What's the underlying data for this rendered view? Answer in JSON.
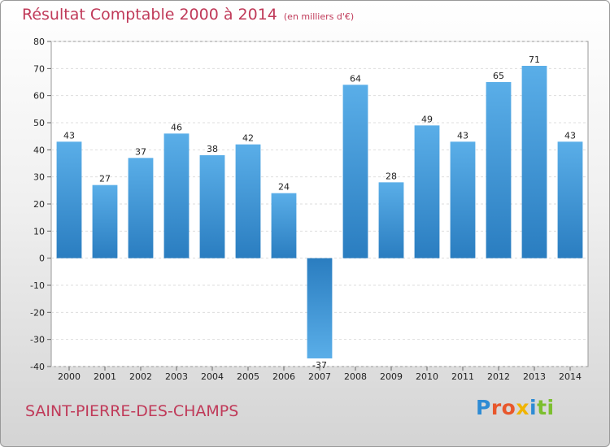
{
  "header": {
    "title": "Résultat Comptable 2000 à 2014",
    "subtitle": "(en milliers d'€)"
  },
  "footer": {
    "commune": "SAINT-PIERRE-DES-CHAMPS",
    "logo_letters": [
      "P",
      "r",
      "o",
      "x",
      "i",
      "t",
      "i"
    ],
    "logo_colors": [
      "#2e8bd4",
      "#e8572c",
      "#e8572c",
      "#f0b400",
      "#2e8bd4",
      "#7cbf2e",
      "#7cbf2e"
    ]
  },
  "chart_data": {
    "type": "bar",
    "title": "Résultat Comptable 2000 à 2014",
    "subtitle": "(en milliers d'€)",
    "xlabel": "",
    "ylabel": "",
    "categories": [
      "2000",
      "2001",
      "2002",
      "2003",
      "2004",
      "2005",
      "2006",
      "2007",
      "2008",
      "2009",
      "2010",
      "2011",
      "2012",
      "2013",
      "2014"
    ],
    "values": [
      43,
      27,
      37,
      46,
      38,
      42,
      24,
      -37,
      64,
      28,
      49,
      43,
      65,
      71,
      43
    ],
    "ylim": [
      -40,
      80
    ],
    "yticks": [
      -40,
      -30,
      -20,
      -10,
      0,
      10,
      20,
      30,
      40,
      50,
      60,
      70,
      80
    ],
    "grid": true,
    "bar_color_top": "#5aaee8",
    "bar_color_bottom": "#2a7dc0"
  }
}
